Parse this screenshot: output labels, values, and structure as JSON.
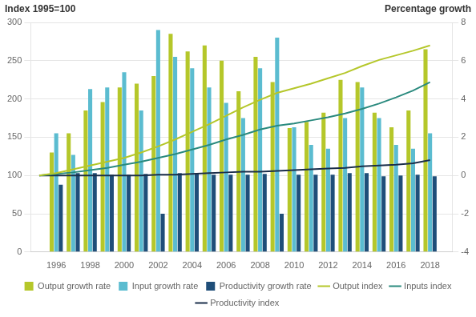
{
  "chart_data": {
    "type": "bar",
    "ylabel": "Index 1995=100",
    "y2label": "Percentage growth",
    "x": [
      1995,
      1996,
      1997,
      1998,
      1999,
      2000,
      2001,
      2002,
      2003,
      2004,
      2005,
      2006,
      2007,
      2008,
      2009,
      2010,
      2011,
      2012,
      2013,
      2014,
      2015,
      2016,
      2017,
      2018
    ],
    "series": [
      {
        "name": "Output growth rate",
        "type": "bar",
        "color": "#b5c72a",
        "values": [
          null,
          130,
          155,
          185,
          196,
          215,
          220,
          230,
          285,
          262,
          270,
          250,
          210,
          255,
          222,
          162,
          170,
          182,
          225,
          222,
          182,
          163,
          185,
          265
        ]
      },
      {
        "name": "Input growth rate",
        "type": "bar",
        "color": "#5bbcd0",
        "values": [
          null,
          155,
          127,
          213,
          215,
          235,
          185,
          290,
          255,
          240,
          215,
          195,
          175,
          240,
          280,
          163,
          140,
          135,
          175,
          215,
          175,
          140,
          135,
          155
        ]
      },
      {
        "name": "Productivity growth rate",
        "type": "bar",
        "color": "#1f4e79",
        "values": [
          null,
          88,
          103,
          103,
          101,
          101,
          102,
          50,
          103,
          103,
          101,
          101,
          101,
          102,
          50,
          101,
          101,
          101,
          103,
          103,
          99,
          100,
          101,
          99
        ]
      },
      {
        "name": "Output index",
        "type": "line",
        "color": "#b5c72a",
        "values": [
          100,
          103,
          108,
          113,
          118,
          123,
          130,
          138,
          147,
          157,
          167,
          178,
          189,
          199,
          208,
          214,
          220,
          227,
          234,
          243,
          251,
          257,
          263,
          270
        ]
      },
      {
        "name": "Inputs index",
        "type": "line",
        "color": "#2a8a7e",
        "values": [
          100,
          102,
          104,
          107,
          110,
          114,
          118,
          123,
          128,
          134,
          140,
          147,
          153,
          160,
          165,
          168,
          172,
          176,
          181,
          187,
          194,
          202,
          211,
          222
        ]
      },
      {
        "name": "Productivity index",
        "type": "line",
        "color": "#1a2e4a",
        "values": [
          100,
          100,
          100,
          100,
          100,
          100,
          100,
          101,
          101,
          102,
          103,
          104,
          105,
          105,
          106,
          107,
          108,
          109,
          110,
          112,
          113,
          114,
          116,
          120
        ]
      }
    ],
    "xlim": [
      1994.5,
      2019.3
    ],
    "xticks": [
      1996,
      1998,
      2000,
      2002,
      2004,
      2006,
      2008,
      2010,
      2012,
      2014,
      2016,
      2018
    ],
    "ylim": [
      0,
      300
    ],
    "yticks": [
      0,
      50,
      100,
      150,
      200,
      250,
      300
    ],
    "y2lim": [
      -4,
      8
    ],
    "y2ticks": [
      -4,
      -2,
      0,
      2,
      4,
      6,
      8
    ],
    "grid": true,
    "legend": "bottom"
  }
}
